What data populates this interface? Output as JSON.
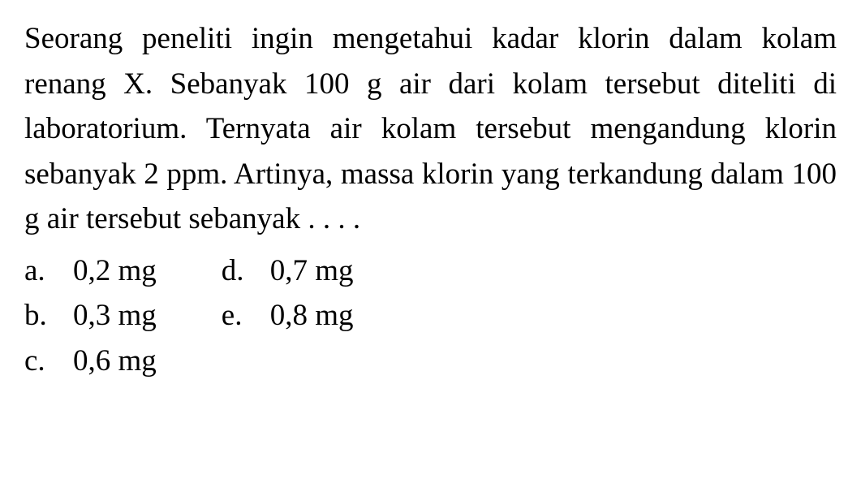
{
  "question": {
    "text": "Seorang peneliti ingin mengetahui kadar klorin dalam kolam renang X. Sebanyak 100 g air dari kolam tersebut diteliti di laboratorium. Ternyata air kolam tersebut mengandung klorin sebanyak 2 ppm. Artinya, massa klorin yang terkandung dalam 100 g air tersebut sebanyak . . . ."
  },
  "options": {
    "left": [
      {
        "letter": "a.",
        "value": "0,2 mg"
      },
      {
        "letter": "b.",
        "value": "0,3 mg"
      },
      {
        "letter": "c.",
        "value": "0,6 mg"
      }
    ],
    "right": [
      {
        "letter": "d.",
        "value": "0,7 mg"
      },
      {
        "letter": "e.",
        "value": "0,8 mg"
      }
    ]
  },
  "styling": {
    "font_family": "Times New Roman",
    "font_size_pt": 28,
    "text_color": "#000000",
    "background_color": "#ffffff",
    "line_height": 1.5
  }
}
